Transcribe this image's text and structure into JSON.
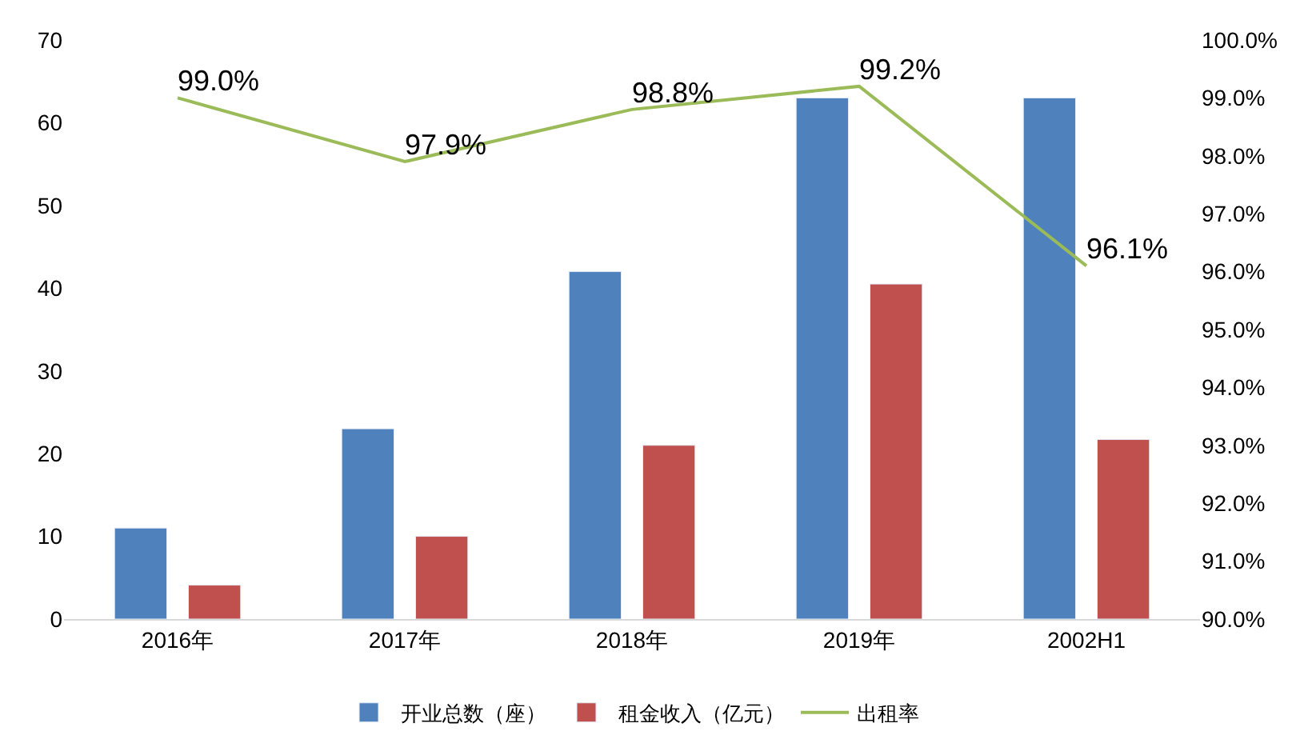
{
  "chart_data": {
    "type": "bar",
    "categories": [
      "2016年",
      "2017年",
      "2018年",
      "2019年",
      "2002H1"
    ],
    "series": [
      {
        "name": "开业总数（座）",
        "color": "#4f81bd",
        "values": [
          11,
          23,
          42,
          63,
          63
        ]
      },
      {
        "name": "租金收入（亿元）",
        "color": "#c0504d",
        "values": [
          4.1,
          10,
          21,
          40.5,
          21.7
        ]
      },
      {
        "name": "出租率",
        "type": "line",
        "axis": "y2",
        "color": "#9bbb59",
        "values": [
          99.0,
          97.9,
          98.8,
          99.2,
          96.1
        ],
        "value_labels": [
          "99.0%",
          "97.9%",
          "98.8%",
          "99.2%",
          "96.1%"
        ]
      }
    ],
    "ylim": [
      0,
      70
    ],
    "yticks": [
      0,
      10,
      20,
      30,
      40,
      50,
      60,
      70
    ],
    "y2lim": [
      90,
      100
    ],
    "y2ticks": [
      {
        "value": 90,
        "label": "90.0%"
      },
      {
        "value": 91,
        "label": "91.0%"
      },
      {
        "value": 92,
        "label": "92.0%"
      },
      {
        "value": 93,
        "label": "93.0%"
      },
      {
        "value": 94,
        "label": "94.0%"
      },
      {
        "value": 95,
        "label": "95.0%"
      },
      {
        "value": 96,
        "label": "96.0%"
      },
      {
        "value": 97,
        "label": "97.0%"
      },
      {
        "value": 98,
        "label": "98.0%"
      },
      {
        "value": 99,
        "label": "99.0%"
      },
      {
        "value": 100,
        "label": "100.0%"
      }
    ],
    "legend": "bottom",
    "marker": "none",
    "line_style": "solid"
  }
}
